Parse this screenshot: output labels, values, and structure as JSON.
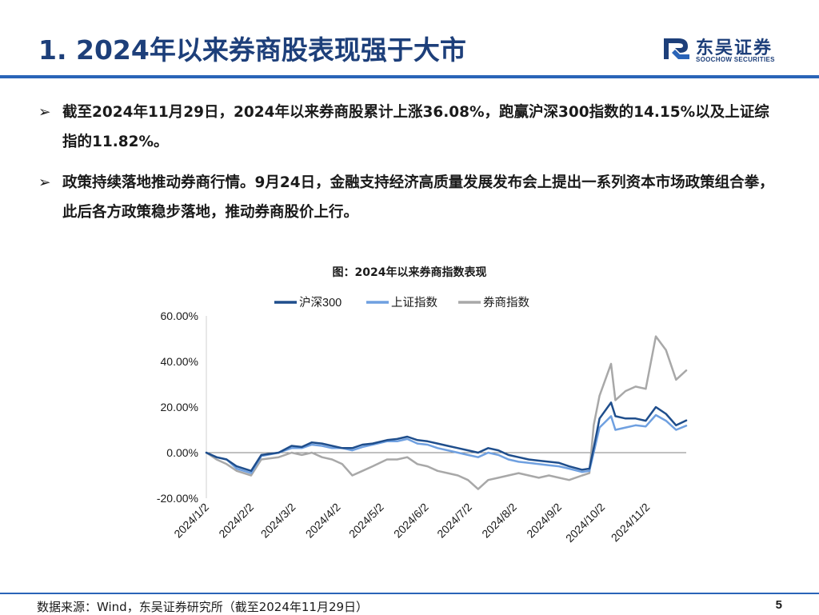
{
  "header": {
    "title": "1. 2024年以来券商股表现强于大市",
    "logo_cn": "东吴证券",
    "logo_en": "SOOCHOW SECURITIES"
  },
  "bullets": [
    {
      "marker": "➢",
      "text": "截至2024年11月29日，2024年以来券商股累计上涨36.08%，跑赢沪深300指数的14.15%以及上证综指的11.82%。"
    },
    {
      "marker": "➢",
      "text": "政策持续落地推动券商行情。9月24日，金融支持经济高质量发展发布会上提出一系列资本市场政策组合拳，此后各方政策稳步落地，推动券商股价上行。"
    }
  ],
  "chart_data": {
    "type": "line",
    "title": "图：2024年以来券商指数表现",
    "ylim": [
      -0.2,
      0.6
    ],
    "y_ticks": [
      -0.2,
      0.0,
      0.2,
      0.4,
      0.6
    ],
    "y_tick_labels": [
      "-20.00%",
      "0.00%",
      "20.00%",
      "40.00%",
      "60.00%"
    ],
    "x_tick_labels": [
      "2024/1/2",
      "2024/2/2",
      "2024/3/2",
      "2024/4/2",
      "2024/5/2",
      "2024/6/2",
      "2024/7/2",
      "2024/8/2",
      "2024/9/2",
      "2024/10/2",
      "2024/11/2"
    ],
    "x_tick_dates": [
      "2024-01-02",
      "2024-02-02",
      "2024-03-02",
      "2024-04-02",
      "2024-05-02",
      "2024-06-02",
      "2024-07-02",
      "2024-08-02",
      "2024-09-02",
      "2024-10-02",
      "2024-11-02"
    ],
    "x_start": "2024-01-02",
    "x_end": "2024-11-29",
    "legend_position": "top",
    "grid": false,
    "series": [
      {
        "name": "沪深300",
        "color": "#1f4e8c",
        "points": [
          [
            "2024-01-02",
            0
          ],
          [
            "2024-01-09",
            -0.02
          ],
          [
            "2024-01-16",
            -0.03
          ],
          [
            "2024-01-23",
            -0.06
          ],
          [
            "2024-02-02",
            -0.08
          ],
          [
            "2024-02-09",
            -0.01
          ],
          [
            "2024-02-21",
            0.0
          ],
          [
            "2024-03-01",
            0.03
          ],
          [
            "2024-03-08",
            0.025
          ],
          [
            "2024-03-15",
            0.045
          ],
          [
            "2024-03-22",
            0.04
          ],
          [
            "2024-03-29",
            0.03
          ],
          [
            "2024-04-05",
            0.02
          ],
          [
            "2024-04-12",
            0.02
          ],
          [
            "2024-04-19",
            0.035
          ],
          [
            "2024-04-26",
            0.04
          ],
          [
            "2024-05-06",
            0.055
          ],
          [
            "2024-05-13",
            0.06
          ],
          [
            "2024-05-20",
            0.07
          ],
          [
            "2024-05-27",
            0.055
          ],
          [
            "2024-06-03",
            0.05
          ],
          [
            "2024-06-10",
            0.04
          ],
          [
            "2024-06-17",
            0.03
          ],
          [
            "2024-06-24",
            0.02
          ],
          [
            "2024-07-01",
            0.01
          ],
          [
            "2024-07-08",
            0.0
          ],
          [
            "2024-07-15",
            0.02
          ],
          [
            "2024-07-22",
            0.01
          ],
          [
            "2024-07-29",
            -0.01
          ],
          [
            "2024-08-05",
            -0.02
          ],
          [
            "2024-08-12",
            -0.03
          ],
          [
            "2024-08-19",
            -0.035
          ],
          [
            "2024-08-26",
            -0.04
          ],
          [
            "2024-09-02",
            -0.045
          ],
          [
            "2024-09-09",
            -0.06
          ],
          [
            "2024-09-18",
            -0.075
          ],
          [
            "2024-09-23",
            -0.07
          ],
          [
            "2024-09-26",
            0.02
          ],
          [
            "2024-09-30",
            0.15
          ],
          [
            "2024-10-08",
            0.22
          ],
          [
            "2024-10-11",
            0.16
          ],
          [
            "2024-10-18",
            0.15
          ],
          [
            "2024-10-25",
            0.15
          ],
          [
            "2024-11-01",
            0.14
          ],
          [
            "2024-11-08",
            0.2
          ],
          [
            "2024-11-15",
            0.17
          ],
          [
            "2024-11-22",
            0.12
          ],
          [
            "2024-11-29",
            0.1415
          ]
        ]
      },
      {
        "name": "上证指数",
        "color": "#6fa0e0",
        "points": [
          [
            "2024-01-02",
            0
          ],
          [
            "2024-01-09",
            -0.02
          ],
          [
            "2024-01-16",
            -0.03
          ],
          [
            "2024-01-23",
            -0.07
          ],
          [
            "2024-02-02",
            -0.09
          ],
          [
            "2024-02-09",
            -0.015
          ],
          [
            "2024-02-21",
            0.0
          ],
          [
            "2024-03-01",
            0.02
          ],
          [
            "2024-03-08",
            0.02
          ],
          [
            "2024-03-15",
            0.035
          ],
          [
            "2024-03-22",
            0.03
          ],
          [
            "2024-03-29",
            0.02
          ],
          [
            "2024-04-05",
            0.02
          ],
          [
            "2024-04-12",
            0.01
          ],
          [
            "2024-04-19",
            0.025
          ],
          [
            "2024-04-26",
            0.035
          ],
          [
            "2024-05-06",
            0.05
          ],
          [
            "2024-05-13",
            0.05
          ],
          [
            "2024-05-20",
            0.06
          ],
          [
            "2024-05-27",
            0.04
          ],
          [
            "2024-06-03",
            0.035
          ],
          [
            "2024-06-10",
            0.02
          ],
          [
            "2024-06-17",
            0.01
          ],
          [
            "2024-06-24",
            0.0
          ],
          [
            "2024-07-01",
            -0.01
          ],
          [
            "2024-07-08",
            -0.02
          ],
          [
            "2024-07-15",
            0.0
          ],
          [
            "2024-07-22",
            -0.01
          ],
          [
            "2024-07-29",
            -0.03
          ],
          [
            "2024-08-05",
            -0.04
          ],
          [
            "2024-08-12",
            -0.045
          ],
          [
            "2024-08-19",
            -0.05
          ],
          [
            "2024-08-26",
            -0.055
          ],
          [
            "2024-09-02",
            -0.06
          ],
          [
            "2024-09-09",
            -0.07
          ],
          [
            "2024-09-18",
            -0.085
          ],
          [
            "2024-09-23",
            -0.08
          ],
          [
            "2024-09-26",
            0.0
          ],
          [
            "2024-09-30",
            0.11
          ],
          [
            "2024-10-08",
            0.16
          ],
          [
            "2024-10-11",
            0.1
          ],
          [
            "2024-10-18",
            0.11
          ],
          [
            "2024-10-25",
            0.12
          ],
          [
            "2024-11-01",
            0.115
          ],
          [
            "2024-11-08",
            0.165
          ],
          [
            "2024-11-15",
            0.14
          ],
          [
            "2024-11-22",
            0.1
          ],
          [
            "2024-11-29",
            0.1182
          ]
        ]
      },
      {
        "name": "券商指数",
        "color": "#a8a8a8",
        "points": [
          [
            "2024-01-02",
            0
          ],
          [
            "2024-01-09",
            -0.03
          ],
          [
            "2024-01-16",
            -0.05
          ],
          [
            "2024-01-23",
            -0.08
          ],
          [
            "2024-02-02",
            -0.1
          ],
          [
            "2024-02-09",
            -0.03
          ],
          [
            "2024-02-21",
            -0.02
          ],
          [
            "2024-03-01",
            0.0
          ],
          [
            "2024-03-08",
            -0.01
          ],
          [
            "2024-03-15",
            0.0
          ],
          [
            "2024-03-22",
            -0.02
          ],
          [
            "2024-03-29",
            -0.03
          ],
          [
            "2024-04-05",
            -0.05
          ],
          [
            "2024-04-12",
            -0.1
          ],
          [
            "2024-04-19",
            -0.08
          ],
          [
            "2024-04-26",
            -0.06
          ],
          [
            "2024-05-06",
            -0.03
          ],
          [
            "2024-05-13",
            -0.03
          ],
          [
            "2024-05-20",
            -0.02
          ],
          [
            "2024-05-27",
            -0.05
          ],
          [
            "2024-06-03",
            -0.06
          ],
          [
            "2024-06-10",
            -0.08
          ],
          [
            "2024-06-17",
            -0.09
          ],
          [
            "2024-06-24",
            -0.1
          ],
          [
            "2024-07-01",
            -0.12
          ],
          [
            "2024-07-08",
            -0.16
          ],
          [
            "2024-07-15",
            -0.12
          ],
          [
            "2024-07-22",
            -0.11
          ],
          [
            "2024-07-29",
            -0.1
          ],
          [
            "2024-08-05",
            -0.09
          ],
          [
            "2024-08-12",
            -0.1
          ],
          [
            "2024-08-19",
            -0.11
          ],
          [
            "2024-08-26",
            -0.1
          ],
          [
            "2024-09-02",
            -0.11
          ],
          [
            "2024-09-09",
            -0.12
          ],
          [
            "2024-09-18",
            -0.1
          ],
          [
            "2024-09-23",
            -0.09
          ],
          [
            "2024-09-26",
            0.12
          ],
          [
            "2024-09-30",
            0.25
          ],
          [
            "2024-10-08",
            0.39
          ],
          [
            "2024-10-11",
            0.23
          ],
          [
            "2024-10-18",
            0.27
          ],
          [
            "2024-10-25",
            0.29
          ],
          [
            "2024-11-01",
            0.28
          ],
          [
            "2024-11-08",
            0.51
          ],
          [
            "2024-11-15",
            0.45
          ],
          [
            "2024-11-22",
            0.32
          ],
          [
            "2024-11-29",
            0.3608
          ]
        ]
      }
    ]
  },
  "footer": {
    "source": "数据来源：Wind，东吴证券研究所（截至2024年11月29日）",
    "page": "5"
  }
}
